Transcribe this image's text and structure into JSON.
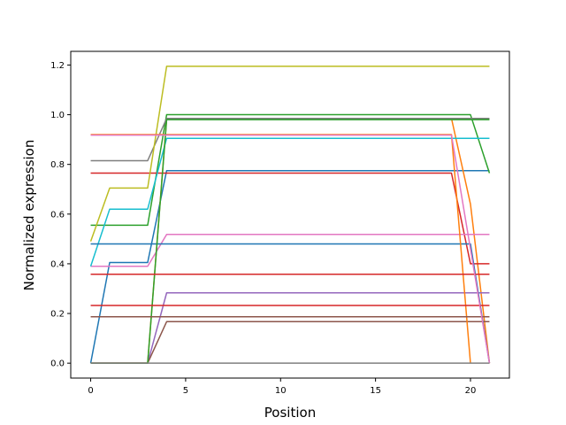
{
  "chart_data": {
    "type": "line",
    "title": "",
    "xlabel": "Position",
    "ylabel": "Normalized expression",
    "xlim": [
      -1.05,
      22.05
    ],
    "ylim": [
      -0.06,
      1.255
    ],
    "xticks": [
      0,
      5,
      10,
      15,
      20
    ],
    "xtick_labels": [
      "0",
      "5",
      "10",
      "15",
      "20"
    ],
    "yticks": [
      0.0,
      0.2,
      0.4,
      0.6,
      0.8,
      1.0,
      1.2
    ],
    "ytick_labels": [
      "0.0",
      "0.2",
      "0.4",
      "0.6",
      "0.8",
      "1.0",
      "1.2"
    ],
    "grid": false,
    "legend": "none",
    "series": [
      {
        "color": "#1f77b4",
        "points": [
          [
            0,
            0.0
          ],
          [
            1,
            0.405
          ],
          [
            3,
            0.405
          ],
          [
            4,
            0.775
          ],
          [
            21,
            0.775
          ]
        ]
      },
      {
        "color": "#ff7f0e",
        "points": [
          [
            0,
            0.0
          ],
          [
            3,
            0.0
          ],
          [
            4,
            0.985
          ],
          [
            19,
            0.985
          ],
          [
            20,
            0.64
          ],
          [
            21,
            0.0
          ]
        ]
      },
      {
        "color": "#2ca02c",
        "points": [
          [
            0,
            0.555
          ],
          [
            3,
            0.555
          ],
          [
            4,
            1.0
          ],
          [
            20,
            1.0
          ],
          [
            21,
            0.765
          ]
        ]
      },
      {
        "color": "#d62728",
        "points": [
          [
            0,
            0.765
          ],
          [
            19,
            0.765
          ],
          [
            20,
            0.4
          ],
          [
            21,
            0.4
          ]
        ]
      },
      {
        "color": "#9467bd",
        "points": [
          [
            0,
            0.0
          ],
          [
            3,
            0.0
          ],
          [
            4,
            0.283
          ],
          [
            21,
            0.283
          ]
        ]
      },
      {
        "color": "#8c564b",
        "points": [
          [
            0,
            0.0
          ],
          [
            3,
            0.0
          ],
          [
            4,
            0.167
          ],
          [
            21,
            0.167
          ]
        ]
      },
      {
        "color": "#e377c2",
        "points": [
          [
            0,
            0.39
          ],
          [
            3,
            0.39
          ],
          [
            4,
            0.518
          ],
          [
            21,
            0.518
          ]
        ]
      },
      {
        "color": "#7f7f7f",
        "points": [
          [
            0,
            0.815
          ],
          [
            3,
            0.815
          ],
          [
            4,
            0.985
          ],
          [
            21,
            0.985
          ]
        ]
      },
      {
        "color": "#bcbd22",
        "points": [
          [
            0,
            0.49
          ],
          [
            1,
            0.705
          ],
          [
            3,
            0.705
          ],
          [
            4,
            1.195
          ],
          [
            21,
            1.195
          ]
        ]
      },
      {
        "color": "#17becf",
        "points": [
          [
            0,
            0.39
          ],
          [
            1,
            0.62
          ],
          [
            3,
            0.62
          ],
          [
            4,
            0.905
          ],
          [
            21,
            0.905
          ]
        ]
      },
      {
        "color": "#1f77b4",
        "points": [
          [
            0,
            0.48
          ],
          [
            20,
            0.48
          ],
          [
            21,
            0.0
          ]
        ]
      },
      {
        "color": "#ff7f0e",
        "points": [
          [
            0,
            0.92
          ],
          [
            19,
            0.92
          ],
          [
            20,
            0.0
          ]
        ]
      },
      {
        "color": "#2ca02c",
        "points": [
          [
            0,
            0.0
          ],
          [
            3,
            0.0
          ],
          [
            4,
            0.98
          ],
          [
            21,
            0.98
          ]
        ]
      },
      {
        "color": "#d62728",
        "points": [
          [
            0,
            0.358
          ],
          [
            21,
            0.358
          ]
        ]
      },
      {
        "color": "#d62728",
        "points": [
          [
            0,
            0.232
          ],
          [
            21,
            0.232
          ]
        ]
      },
      {
        "color": "#8c564b",
        "points": [
          [
            0,
            0.187
          ],
          [
            21,
            0.187
          ]
        ]
      },
      {
        "color": "#e377c2",
        "points": [
          [
            0,
            0.918
          ],
          [
            19,
            0.918
          ],
          [
            21,
            0.0
          ]
        ]
      },
      {
        "color": "#7f7f7f",
        "points": [
          [
            0,
            0.0
          ],
          [
            21,
            0.0
          ]
        ]
      }
    ]
  }
}
